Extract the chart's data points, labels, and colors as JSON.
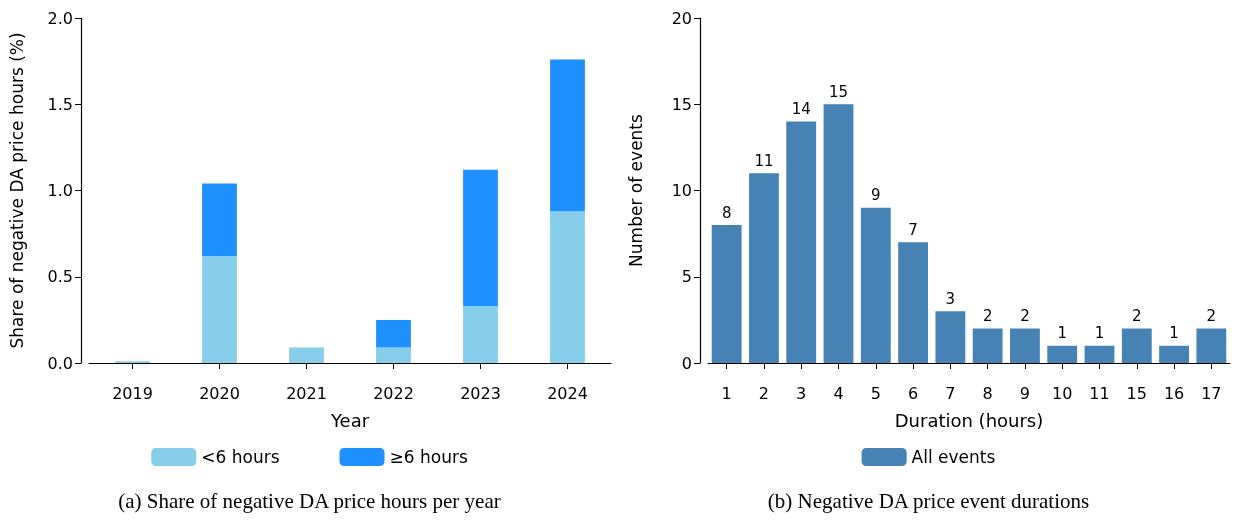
{
  "chart_data": [
    {
      "type": "bar",
      "stacked": true,
      "xlabel": "Year",
      "ylabel": "Share of negative DA price hours (%)",
      "categories": [
        "2019",
        "2020",
        "2021",
        "2022",
        "2023",
        "2024"
      ],
      "series": [
        {
          "name": "<6 hours",
          "color": "#87ceeb",
          "values": [
            0.01,
            0.62,
            0.09,
            0.09,
            0.33,
            0.88
          ]
        },
        {
          "name": "≥6 hours",
          "color": "#1e90ff",
          "values": [
            0,
            0.42,
            0,
            0.16,
            0.79,
            0.88
          ]
        }
      ],
      "ylim": [
        0,
        2
      ],
      "yticks": [
        {
          "value": 0,
          "label": "0.0"
        },
        {
          "value": 0.5,
          "label": "0.5"
        },
        {
          "value": 1,
          "label": "1.0"
        },
        {
          "value": 1.5,
          "label": "1.5"
        },
        {
          "value": 2,
          "label": "2.0"
        }
      ],
      "grid": false,
      "legend": "bottom",
      "annotations": [
        "(a) Share of negative DA price hours per year"
      ]
    },
    {
      "type": "bar",
      "xlabel": "Duration (hours)",
      "ylabel": "Number of events",
      "categories": [
        "1",
        "2",
        "3",
        "4",
        "5",
        "6",
        "7",
        "8",
        "9",
        "10",
        "11",
        "15",
        "16",
        "17"
      ],
      "series": [
        {
          "name": "All events",
          "color": "#4682b4",
          "values": [
            8,
            11,
            14,
            15,
            9,
            7,
            3,
            2,
            2,
            1,
            1,
            2,
            1,
            2
          ]
        }
      ],
      "ylim": [
        0,
        20
      ],
      "yticks": [
        0,
        5,
        10,
        15,
        20
      ],
      "data_labels": true,
      "grid": false,
      "legend": "bottom",
      "annotations": [
        "(b) Negative DA price event durations"
      ]
    }
  ]
}
